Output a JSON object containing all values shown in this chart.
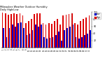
{
  "title": "Milwaukee Weather Outdoor Humidity",
  "subtitle": "Daily High/Low",
  "high_color": "#dd0000",
  "low_color": "#0000cc",
  "bg_color": "#ffffff",
  "ylim": [
    0,
    100
  ],
  "yticks": [
    20,
    40,
    60,
    80,
    100
  ],
  "high_values": [
    98,
    96,
    93,
    95,
    97,
    95,
    96,
    90,
    70,
    75,
    80,
    95,
    96,
    97,
    70,
    65,
    70,
    68,
    75,
    80,
    65,
    90,
    92,
    95,
    97,
    70,
    65,
    75,
    80,
    85,
    90
  ],
  "low_values": [
    55,
    30,
    55,
    65,
    60,
    70,
    72,
    55,
    35,
    40,
    50,
    65,
    60,
    65,
    30,
    25,
    28,
    30,
    35,
    45,
    20,
    50,
    55,
    60,
    65,
    30,
    25,
    30,
    35,
    40,
    50
  ],
  "days": [
    "1",
    "2",
    "3",
    "4",
    "5",
    "6",
    "7",
    "8",
    "9",
    "10",
    "11",
    "12",
    "13",
    "14",
    "15",
    "16",
    "17",
    "18",
    "19",
    "20",
    "21",
    "22",
    "23",
    "24",
    "25",
    "26",
    "27",
    "28",
    "29",
    "30",
    "31"
  ],
  "separator_index": 24,
  "bar_width": 0.42,
  "legend_high": "High",
  "legend_low": "Low"
}
